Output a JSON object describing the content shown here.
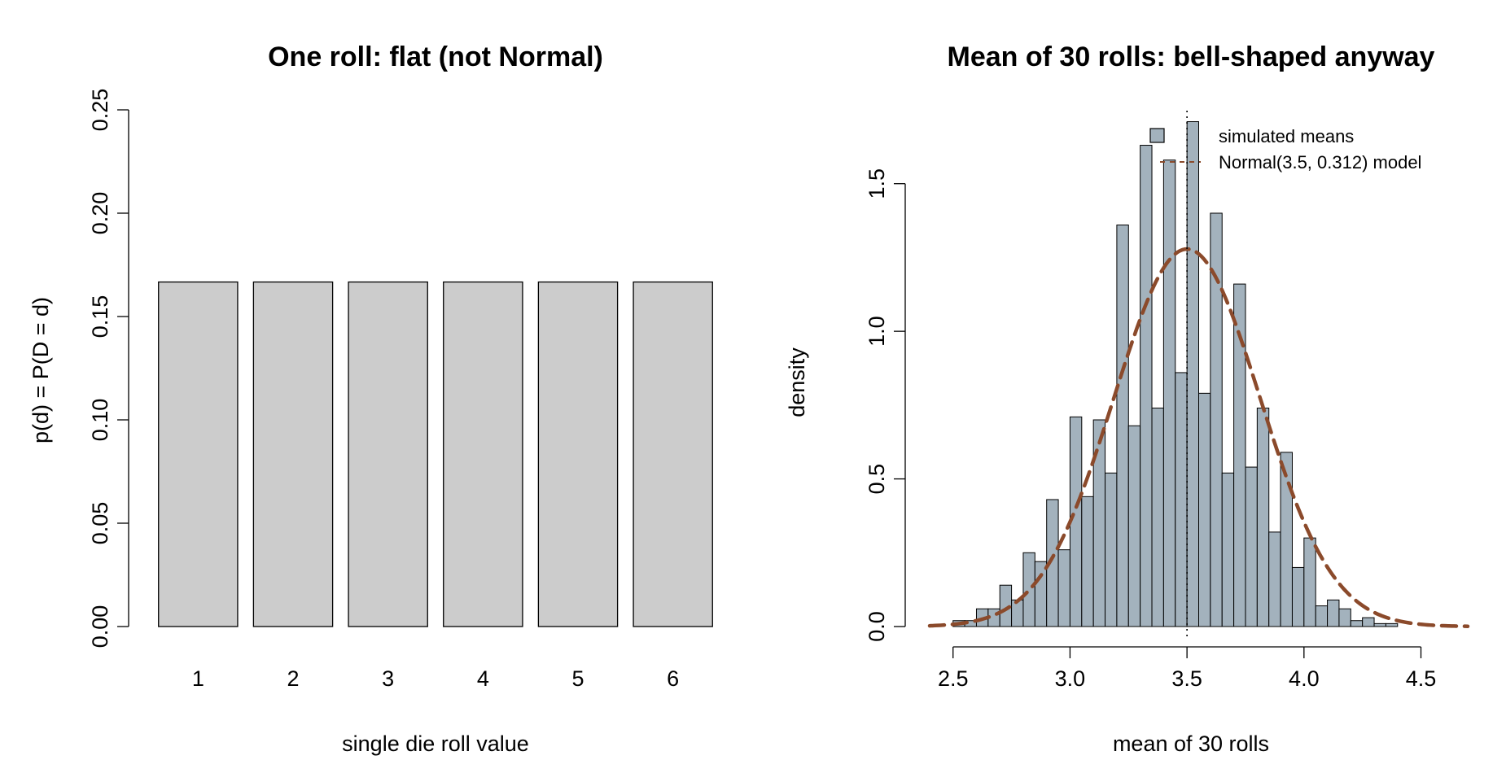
{
  "chart_data": [
    {
      "type": "bar",
      "title": "One roll: flat (not Normal)",
      "xlabel": "single die roll value",
      "ylabel": "p(d) = P(D = d)",
      "categories": [
        "1",
        "2",
        "3",
        "4",
        "5",
        "6"
      ],
      "values": [
        0.1667,
        0.1667,
        0.1667,
        0.1667,
        0.1667,
        0.1667
      ],
      "ylim": [
        0,
        0.25
      ],
      "yticks": [
        "0.00",
        "0.05",
        "0.10",
        "0.15",
        "0.20",
        "0.25"
      ],
      "bar_color": "#cccccc"
    },
    {
      "type": "histogram",
      "title": "Mean of 30 rolls: bell-shaped anyway",
      "xlabel": "mean of 30 rolls",
      "ylabel": "density",
      "xlim": [
        2.4,
        4.7
      ],
      "ylim": [
        0,
        1.75
      ],
      "xticks": [
        "2.5",
        "3.0",
        "3.5",
        "4.0",
        "4.5"
      ],
      "yticks": [
        "0.0",
        "0.5",
        "1.0",
        "1.5"
      ],
      "bin_start": 2.4,
      "bin_width": 0.05,
      "densities": [
        0.0,
        0.0,
        0.02,
        0.02,
        0.06,
        0.06,
        0.14,
        0.09,
        0.25,
        0.22,
        0.43,
        0.26,
        0.71,
        0.44,
        0.7,
        0.52,
        1.36,
        0.68,
        1.63,
        0.74,
        1.58,
        0.86,
        1.71,
        0.79,
        1.4,
        0.52,
        1.16,
        0.54,
        0.74,
        0.32,
        0.59,
        0.2,
        0.3,
        0.07,
        0.09,
        0.06,
        0.02,
        0.03,
        0.01,
        0.01,
        0.0,
        0.0,
        0.0,
        0.0,
        0.0,
        0.0
      ],
      "normal_model": {
        "mean": 3.5,
        "sd": 0.312
      },
      "reference_line_x": 3.5,
      "legend": {
        "position": "top-right",
        "items": [
          "simulated means",
          "Normal(3.5, 0.312) model"
        ]
      },
      "colors": {
        "bars": "#a3b2bd",
        "curve": "#8b4a2b"
      }
    }
  ]
}
